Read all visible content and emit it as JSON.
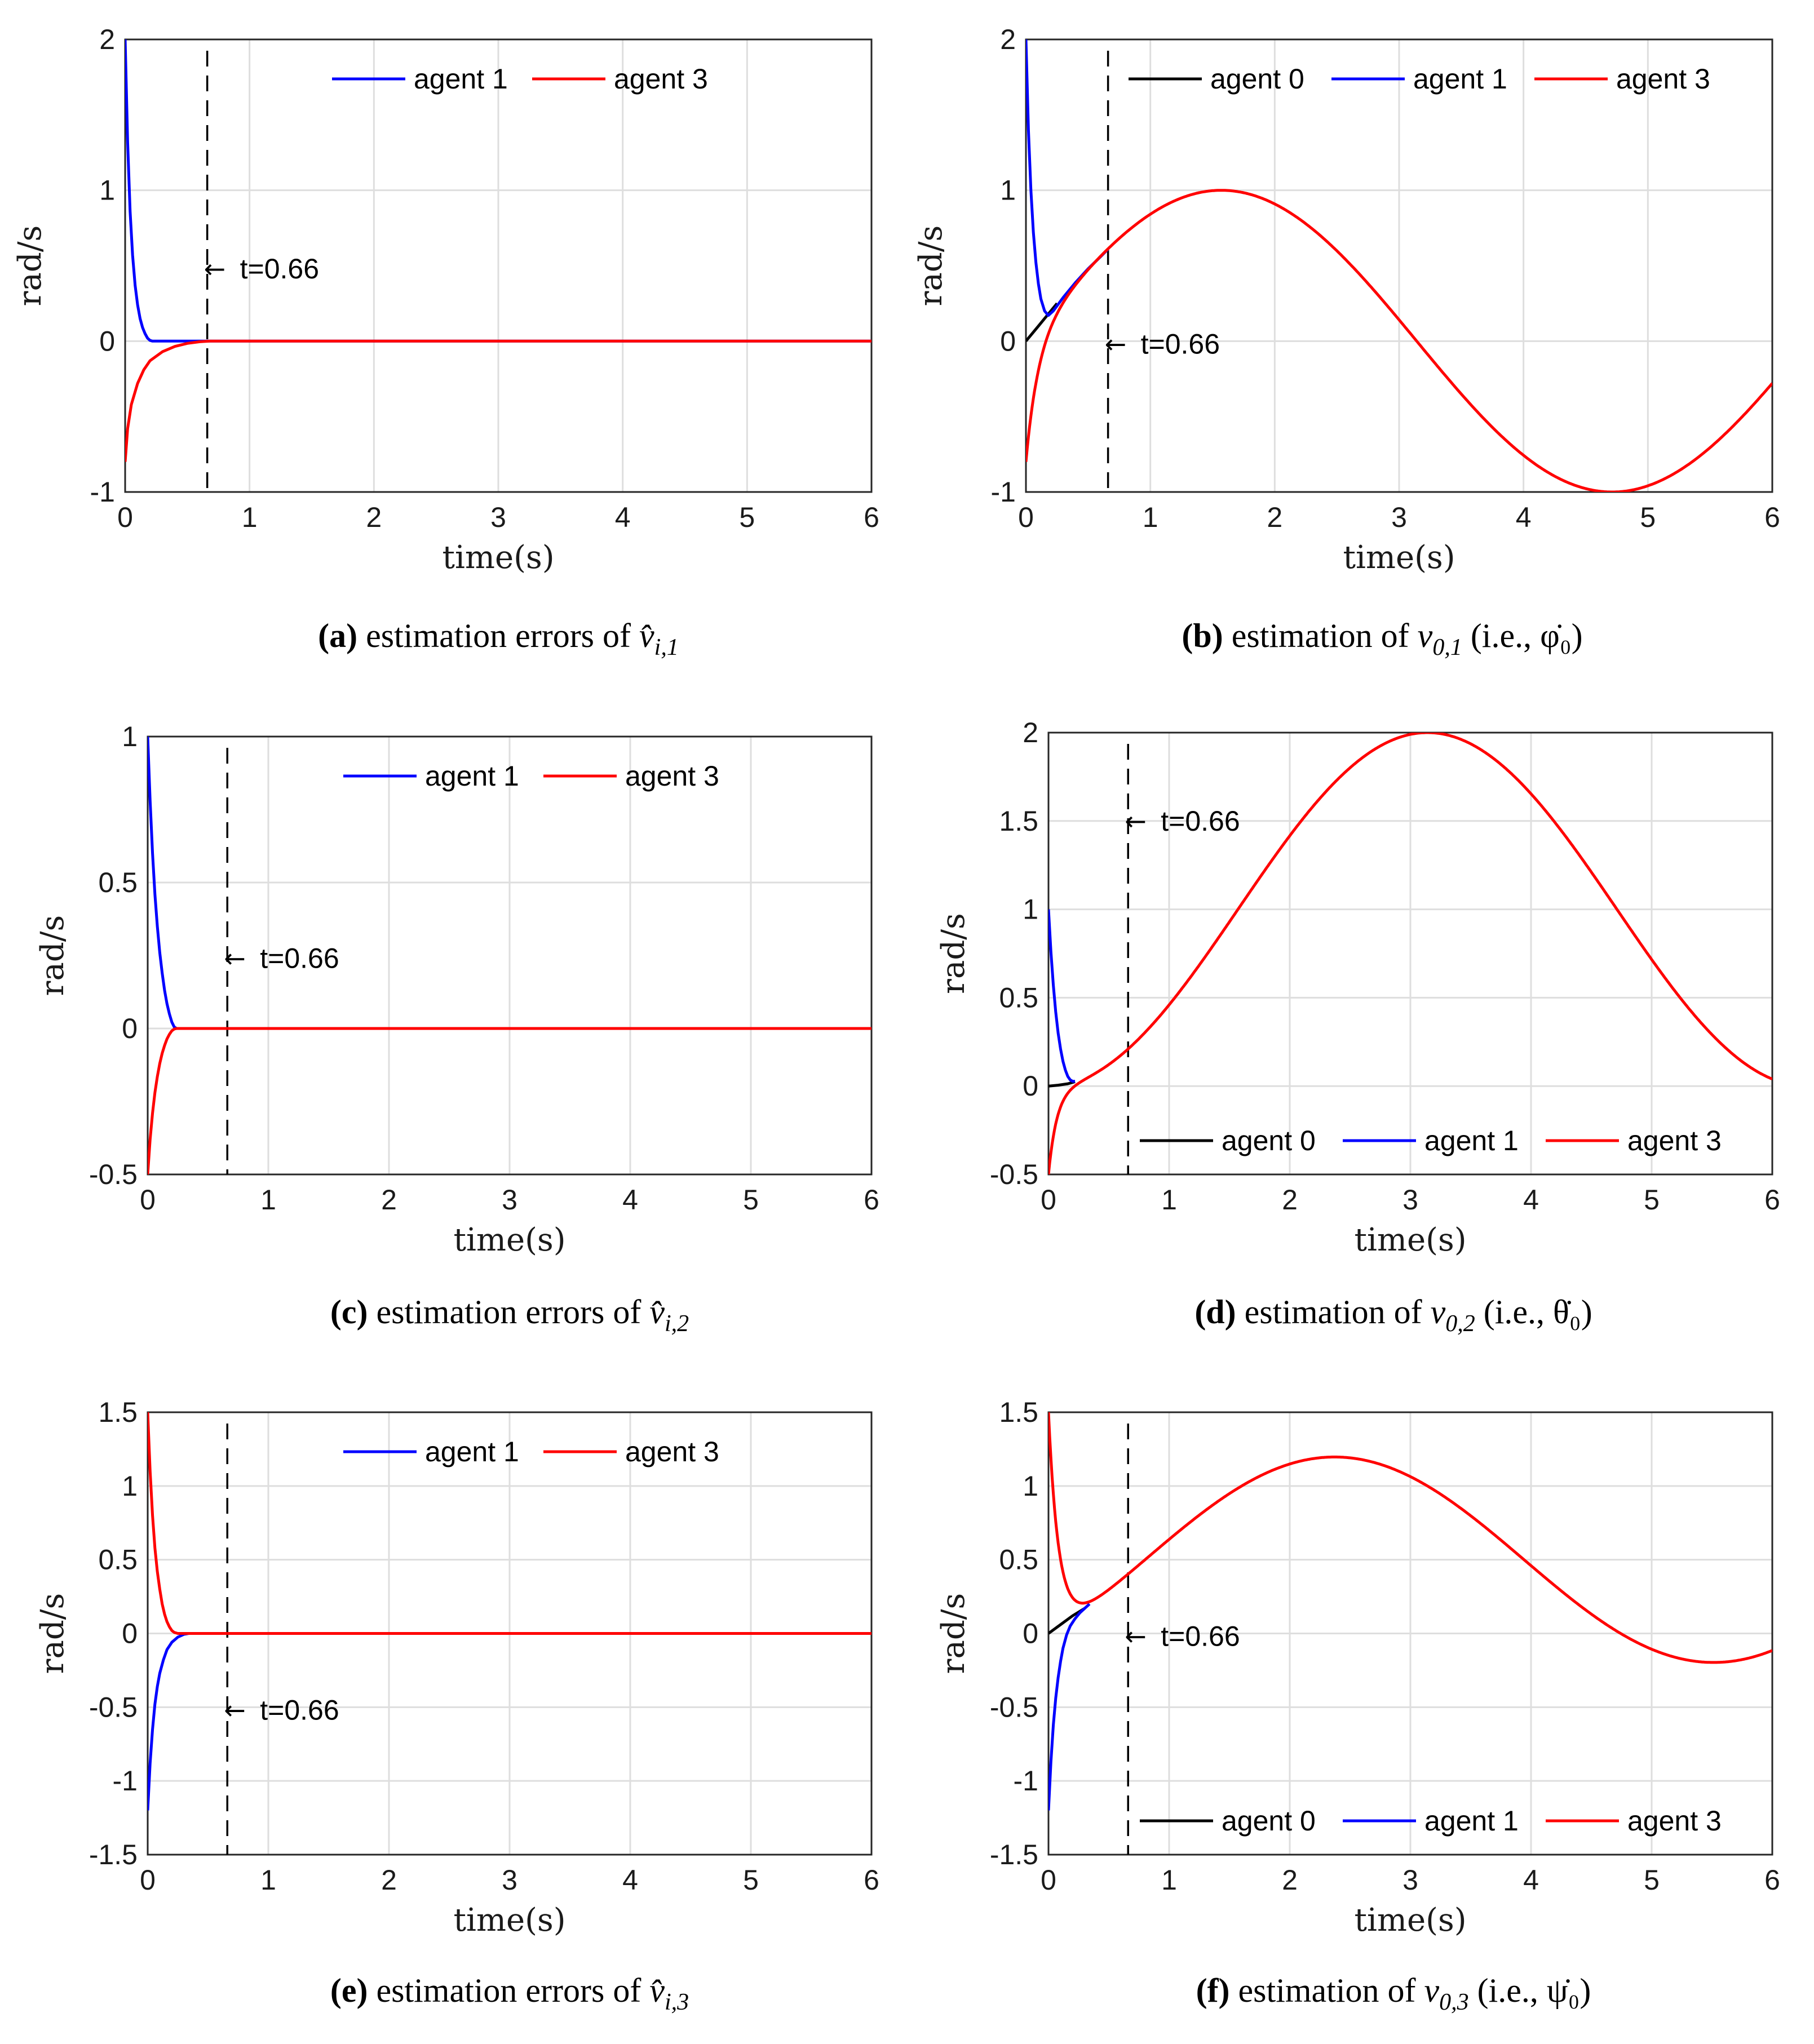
{
  "chart_data": [
    {
      "id": "a",
      "type": "line",
      "ylabel": "rad/s",
      "xlabel": "time(s)",
      "xlim": [
        0,
        6
      ],
      "ylim": [
        -1,
        2
      ],
      "xticks": [
        "0",
        "1",
        "2",
        "3",
        "4",
        "5",
        "6"
      ],
      "yticks": [
        "-1",
        "0",
        "1",
        "2"
      ],
      "grid": true,
      "legend": [
        "agent 1",
        "agent 3"
      ],
      "legend_position": "top",
      "vline_x": 0.66,
      "annotation": {
        "text": "t=0.66",
        "x": 0.66,
        "y": 0.48
      },
      "caption": {
        "letter": "(a)",
        "text": "estimation errors of ",
        "math": "v̂",
        "sub": "i,1",
        "after": ""
      },
      "series": [
        {
          "name": "agent 1",
          "color": "#0000ff",
          "points": [
            [
              0,
              2.0
            ],
            [
              0.02,
              1.32
            ],
            [
              0.04,
              0.86
            ],
            [
              0.06,
              0.57
            ],
            [
              0.08,
              0.37
            ],
            [
              0.1,
              0.24
            ],
            [
              0.12,
              0.15
            ],
            [
              0.14,
              0.09
            ],
            [
              0.16,
              0.05
            ],
            [
              0.18,
              0.02
            ],
            [
              0.2,
              0.005
            ],
            [
              0.22,
              0
            ],
            [
              6,
              0
            ]
          ]
        },
        {
          "name": "agent 3",
          "color": "#ff0000",
          "points": [
            [
              0,
              -0.8
            ],
            [
              0.02,
              -0.58
            ],
            [
              0.05,
              -0.42
            ],
            [
              0.1,
              -0.28
            ],
            [
              0.15,
              -0.19
            ],
            [
              0.2,
              -0.13
            ],
            [
              0.3,
              -0.07
            ],
            [
              0.4,
              -0.035
            ],
            [
              0.5,
              -0.015
            ],
            [
              0.6,
              -0.004
            ],
            [
              0.68,
              0
            ],
            [
              6,
              0
            ]
          ]
        }
      ]
    },
    {
      "id": "b",
      "type": "line",
      "ylabel": "rad/s",
      "xlabel": "time(s)",
      "xlim": [
        0,
        6
      ],
      "ylim": [
        -1,
        2
      ],
      "xticks": [
        "0",
        "1",
        "2",
        "3",
        "4",
        "5",
        "6"
      ],
      "yticks": [
        "-1",
        "0",
        "1",
        "2"
      ],
      "grid": true,
      "legend": [
        "agent 0",
        "agent 1",
        "agent 3"
      ],
      "legend_position": "top",
      "vline_x": 0.66,
      "annotation": {
        "text": "t=0.66",
        "x": 0.66,
        "y": -0.02
      },
      "caption": {
        "letter": "(b)",
        "text": "estimation of ",
        "math": "v",
        "sub": "0,1",
        "after": " (i.e., φ̇₀)"
      },
      "series": [
        {
          "name": "agent 0",
          "color": "#000000",
          "points": [
            [
              0,
              0
            ],
            [
              0.1,
              0.1
            ],
            [
              0.2,
              0.2
            ],
            [
              0.25,
              0.25
            ]
          ]
        },
        {
          "name": "agent 1",
          "color": "#0000ff",
          "points": [
            [
              0,
              2.0
            ],
            [
              0.02,
              1.4
            ],
            [
              0.04,
              1.0
            ],
            [
              0.06,
              0.72
            ],
            [
              0.08,
              0.52
            ],
            [
              0.1,
              0.38
            ],
            [
              0.12,
              0.28
            ],
            [
              0.15,
              0.2
            ],
            [
              0.18,
              0.17
            ],
            [
              0.22,
              0.2
            ],
            [
              0.3,
              0.29
            ],
            [
              0.4,
              0.39
            ],
            [
              0.5,
              0.48
            ],
            [
              0.6,
              0.56
            ],
            [
              0.66,
              0.61
            ]
          ]
        },
        {
          "name": "agent 3",
          "color": "#ff0000",
          "func": "sin",
          "amp": 1,
          "omega": 1,
          "start": -0.8,
          "decay": 10
        }
      ]
    },
    {
      "id": "c",
      "type": "line",
      "ylabel": "rad/s",
      "xlabel": "time(s)",
      "xlim": [
        0,
        6
      ],
      "ylim": [
        -0.5,
        1
      ],
      "xticks": [
        "0",
        "1",
        "2",
        "3",
        "4",
        "5",
        "6"
      ],
      "yticks": [
        "-0.5",
        "0",
        "0.5",
        "1"
      ],
      "grid": true,
      "legend": [
        "agent 1",
        "agent 3"
      ],
      "legend_position": "top",
      "vline_x": 0.66,
      "annotation": {
        "text": "t=0.66",
        "x": 0.66,
        "y": 0.24
      },
      "caption": {
        "letter": "(c)",
        "text": "estimation errors of ",
        "math": "v̂",
        "sub": "i,2",
        "after": ""
      },
      "series": [
        {
          "name": "agent 1",
          "color": "#0000ff",
          "points": [
            [
              0,
              1.0
            ],
            [
              0.02,
              0.78
            ],
            [
              0.04,
              0.6
            ],
            [
              0.06,
              0.46
            ],
            [
              0.08,
              0.35
            ],
            [
              0.1,
              0.26
            ],
            [
              0.12,
              0.19
            ],
            [
              0.14,
              0.13
            ],
            [
              0.16,
              0.085
            ],
            [
              0.18,
              0.05
            ],
            [
              0.2,
              0.022
            ],
            [
              0.22,
              0.005
            ],
            [
              0.24,
              0
            ],
            [
              6,
              0
            ]
          ]
        },
        {
          "name": "agent 3",
          "color": "#ff0000",
          "points": [
            [
              0,
              -0.5
            ],
            [
              0.02,
              -0.38
            ],
            [
              0.04,
              -0.29
            ],
            [
              0.06,
              -0.22
            ],
            [
              0.08,
              -0.165
            ],
            [
              0.1,
              -0.12
            ],
            [
              0.12,
              -0.085
            ],
            [
              0.14,
              -0.058
            ],
            [
              0.16,
              -0.036
            ],
            [
              0.18,
              -0.02
            ],
            [
              0.2,
              -0.008
            ],
            [
              0.22,
              -0.002
            ],
            [
              0.24,
              0
            ],
            [
              6,
              0
            ]
          ]
        }
      ]
    },
    {
      "id": "d",
      "type": "line",
      "ylabel": "rad/s",
      "xlabel": "time(s)",
      "xlim": [
        0,
        6
      ],
      "ylim": [
        -0.5,
        2
      ],
      "xticks": [
        "0",
        "1",
        "2",
        "3",
        "4",
        "5",
        "6"
      ],
      "yticks": [
        "-0.5",
        "0",
        "0.5",
        "1",
        "1.5",
        "2"
      ],
      "grid": true,
      "legend": [
        "agent 0",
        "agent 1",
        "agent 3"
      ],
      "legend_position": "bottom",
      "vline_x": 0.66,
      "annotation": {
        "text": "t=0.66",
        "x": 0.66,
        "y": 1.5
      },
      "caption": {
        "letter": "(d)",
        "text": "estimation of ",
        "math": "v",
        "sub": "0,2",
        "after": " (i.e., θ̇₀)"
      },
      "series": [
        {
          "name": "agent 0",
          "color": "#000000",
          "points": [
            [
              0,
              0
            ],
            [
              0.08,
              0.005
            ],
            [
              0.16,
              0.013
            ],
            [
              0.22,
              0.025
            ]
          ]
        },
        {
          "name": "agent 1",
          "color": "#0000ff",
          "points": [
            [
              0,
              1.0
            ],
            [
              0.02,
              0.76
            ],
            [
              0.04,
              0.57
            ],
            [
              0.06,
              0.42
            ],
            [
              0.08,
              0.3
            ],
            [
              0.1,
              0.21
            ],
            [
              0.12,
              0.14
            ],
            [
              0.14,
              0.09
            ],
            [
              0.16,
              0.055
            ],
            [
              0.18,
              0.035
            ],
            [
              0.2,
              0.027
            ],
            [
              0.22,
              0.027
            ]
          ]
        },
        {
          "name": "agent 3",
          "color": "#ff0000",
          "func": "one_minus_cos",
          "amp": 1,
          "omega": 1,
          "start": -0.5,
          "decay": 14
        }
      ]
    },
    {
      "id": "e",
      "type": "line",
      "ylabel": "rad/s",
      "xlabel": "time(s)",
      "xlim": [
        0,
        6
      ],
      "ylim": [
        -1.5,
        1.5
      ],
      "xticks": [
        "0",
        "1",
        "2",
        "3",
        "4",
        "5",
        "6"
      ],
      "yticks": [
        "-1.5",
        "-1",
        "-0.5",
        "0",
        "0.5",
        "1",
        "1.5"
      ],
      "grid": true,
      "legend": [
        "agent 1",
        "agent 3"
      ],
      "legend_position": "top",
      "vline_x": 0.66,
      "annotation": {
        "text": "t=0.66",
        "x": 0.66,
        "y": -0.52
      },
      "caption": {
        "letter": "(e)",
        "text": "estimation errors of ",
        "math": "v̂",
        "sub": "i,3",
        "after": ""
      },
      "series": [
        {
          "name": "agent 1",
          "color": "#0000ff",
          "points": [
            [
              0,
              -1.2
            ],
            [
              0.02,
              -0.88
            ],
            [
              0.04,
              -0.65
            ],
            [
              0.06,
              -0.48
            ],
            [
              0.08,
              -0.36
            ],
            [
              0.1,
              -0.27
            ],
            [
              0.13,
              -0.18
            ],
            [
              0.16,
              -0.11
            ],
            [
              0.2,
              -0.06
            ],
            [
              0.25,
              -0.025
            ],
            [
              0.3,
              -0.006
            ],
            [
              0.34,
              0
            ],
            [
              6,
              0
            ]
          ]
        },
        {
          "name": "agent 3",
          "color": "#ff0000",
          "points": [
            [
              0,
              1.5
            ],
            [
              0.02,
              1.1
            ],
            [
              0.04,
              0.8
            ],
            [
              0.06,
              0.58
            ],
            [
              0.08,
              0.42
            ],
            [
              0.1,
              0.3
            ],
            [
              0.12,
              0.2
            ],
            [
              0.14,
              0.13
            ],
            [
              0.16,
              0.08
            ],
            [
              0.18,
              0.045
            ],
            [
              0.2,
              0.02
            ],
            [
              0.22,
              0.007
            ],
            [
              0.25,
              0
            ],
            [
              6,
              0
            ]
          ]
        }
      ]
    },
    {
      "id": "f",
      "type": "line",
      "ylabel": "rad/s",
      "xlabel": "time(s)",
      "xlim": [
        0,
        6
      ],
      "ylim": [
        -1.5,
        1.5
      ],
      "xticks": [
        "0",
        "1",
        "2",
        "3",
        "4",
        "5",
        "6"
      ],
      "yticks": [
        "-1.5",
        "-1",
        "-0.5",
        "0",
        "0.5",
        "1",
        "1.5"
      ],
      "grid": true,
      "legend": [
        "agent 0",
        "agent 1",
        "agent 3"
      ],
      "legend_position": "bottom",
      "vline_x": 0.66,
      "annotation": {
        "text": "t=0.66",
        "x": 0.66,
        "y": -0.02
      },
      "caption": {
        "letter": "(f)",
        "text": "estimation of ",
        "math": "v",
        "sub": "0,3",
        "after": " (i.e., ψ̇₀)"
      },
      "series": [
        {
          "name": "agent 0",
          "color": "#000000",
          "points": [
            [
              0,
              0
            ],
            [
              0.1,
              0.06
            ],
            [
              0.2,
              0.12
            ],
            [
              0.3,
              0.17
            ]
          ]
        },
        {
          "name": "agent 1",
          "color": "#0000ff",
          "points": [
            [
              0,
              -1.2
            ],
            [
              0.02,
              -0.87
            ],
            [
              0.04,
              -0.62
            ],
            [
              0.06,
              -0.44
            ],
            [
              0.08,
              -0.3
            ],
            [
              0.1,
              -0.19
            ],
            [
              0.12,
              -0.1
            ],
            [
              0.15,
              -0.01
            ],
            [
              0.18,
              0.05
            ],
            [
              0.22,
              0.1
            ],
            [
              0.26,
              0.14
            ],
            [
              0.3,
              0.17
            ],
            [
              0.34,
              0.2
            ]
          ]
        },
        {
          "name": "agent 3",
          "color": "#ff0000",
          "func": "lissa",
          "start": 1.5,
          "decay": 12
        }
      ]
    }
  ]
}
